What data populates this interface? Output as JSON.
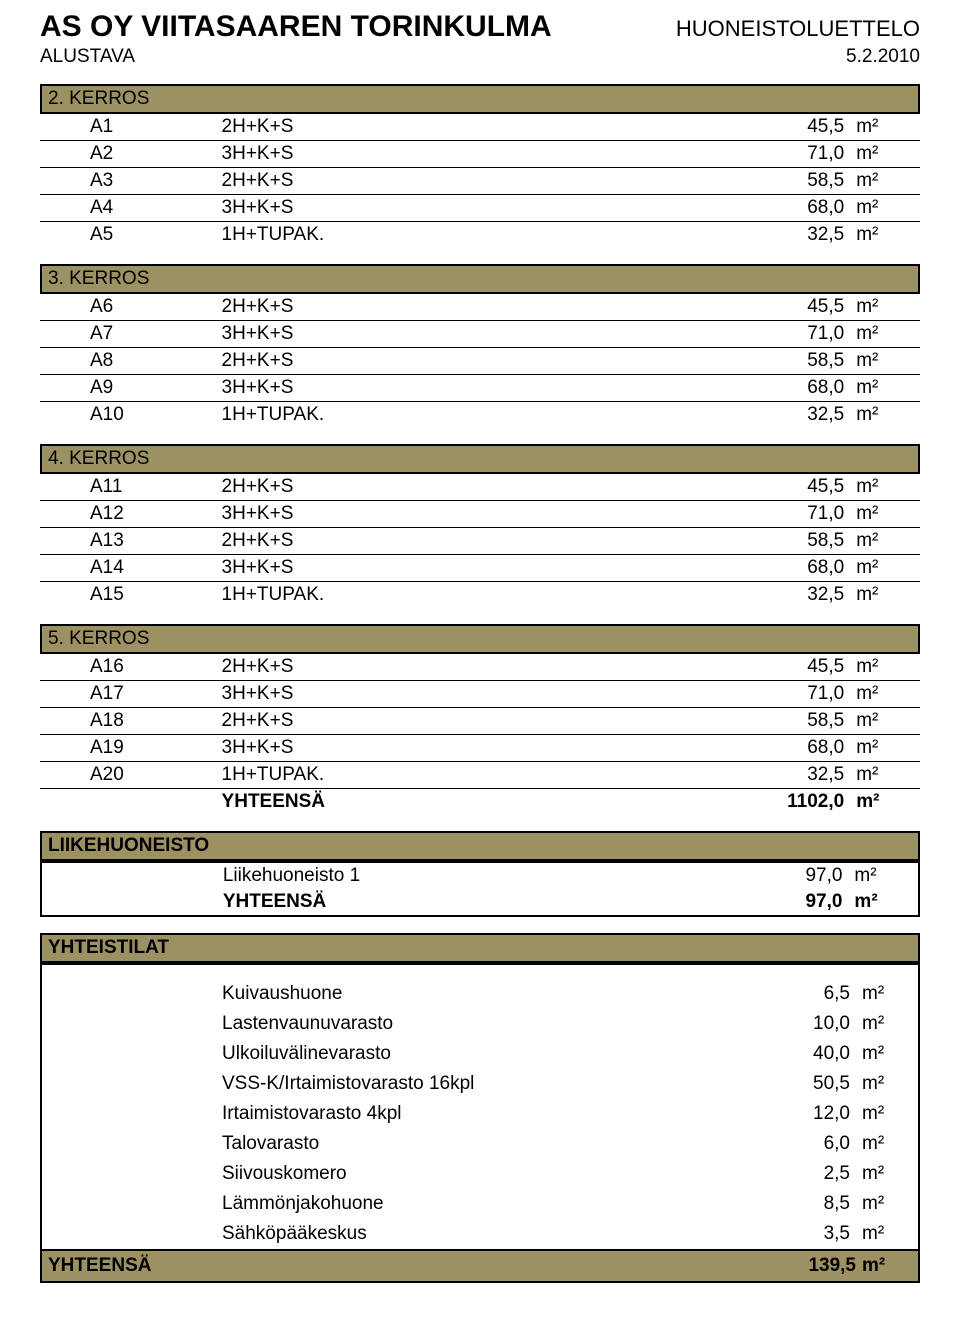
{
  "header": {
    "company": "AS OY VIITASAAREN TORINKULMA",
    "right_title": "HUONEISTOLUETTELO",
    "subtitle": "ALUSTAVA",
    "date": "5.2.2010"
  },
  "floors": [
    {
      "title": "2. KERROS",
      "rows": [
        {
          "id": "A1",
          "type": "2H+K+S",
          "val": "45,5",
          "unit": "m²"
        },
        {
          "id": "A2",
          "type": "3H+K+S",
          "val": "71,0",
          "unit": "m²"
        },
        {
          "id": "A3",
          "type": "2H+K+S",
          "val": "58,5",
          "unit": "m²"
        },
        {
          "id": "A4",
          "type": "3H+K+S",
          "val": "68,0",
          "unit": "m²"
        },
        {
          "id": "A5",
          "type": "1H+TUPAK.",
          "val": "32,5",
          "unit": "m²"
        }
      ]
    },
    {
      "title": "3. KERROS",
      "rows": [
        {
          "id": "A6",
          "type": "2H+K+S",
          "val": "45,5",
          "unit": "m²"
        },
        {
          "id": "A7",
          "type": "3H+K+S",
          "val": "71,0",
          "unit": "m²"
        },
        {
          "id": "A8",
          "type": "2H+K+S",
          "val": "58,5",
          "unit": "m²"
        },
        {
          "id": "A9",
          "type": "3H+K+S",
          "val": "68,0",
          "unit": "m²"
        },
        {
          "id": "A10",
          "type": "1H+TUPAK.",
          "val": "32,5",
          "unit": "m²"
        }
      ]
    },
    {
      "title": "4. KERROS",
      "rows": [
        {
          "id": "A11",
          "type": "2H+K+S",
          "val": "45,5",
          "unit": "m²"
        },
        {
          "id": "A12",
          "type": "3H+K+S",
          "val": "71,0",
          "unit": "m²"
        },
        {
          "id": "A13",
          "type": "2H+K+S",
          "val": "58,5",
          "unit": "m²"
        },
        {
          "id": "A14",
          "type": "3H+K+S",
          "val": "68,0",
          "unit": "m²"
        },
        {
          "id": "A15",
          "type": "1H+TUPAK.",
          "val": "32,5",
          "unit": "m²"
        }
      ]
    },
    {
      "title": "5. KERROS",
      "rows": [
        {
          "id": "A16",
          "type": "2H+K+S",
          "val": "45,5",
          "unit": "m²"
        },
        {
          "id": "A17",
          "type": "3H+K+S",
          "val": "71,0",
          "unit": "m²"
        },
        {
          "id": "A18",
          "type": "2H+K+S",
          "val": "58,5",
          "unit": "m²"
        },
        {
          "id": "A19",
          "type": "3H+K+S",
          "val": "68,0",
          "unit": "m²"
        },
        {
          "id": "A20",
          "type": "1H+TUPAK.",
          "val": "32,5",
          "unit": "m²"
        }
      ],
      "total": {
        "label": "YHTEENSÄ",
        "val": "1102,0",
        "unit": "m²"
      }
    }
  ],
  "liike": {
    "header": "LIIKEHUONEISTO",
    "rows": [
      {
        "label": "Liikehuoneisto 1",
        "val": "97,0",
        "unit": "m²"
      }
    ],
    "total": {
      "label": "YHTEENSÄ",
      "val": "97,0",
      "unit": "m²"
    }
  },
  "yhteistilat": {
    "header": "YHTEISTILAT",
    "rows": [
      {
        "label": "Kuivaushuone",
        "val": "6,5",
        "unit": "m²"
      },
      {
        "label": "Lastenvaunuvarasto",
        "val": "10,0",
        "unit": "m²"
      },
      {
        "label": "Ulkoiluvälinevarasto",
        "val": "40,0",
        "unit": "m²"
      },
      {
        "label": "VSS-K/Irtaimistovarasto 16kpl",
        "val": "50,5",
        "unit": "m²"
      },
      {
        "label": "Irtaimistovarasto 4kpl",
        "val": "12,0",
        "unit": "m²"
      },
      {
        "label": "Talovarasto",
        "val": "6,0",
        "unit": "m²"
      },
      {
        "label": "Siivouskomero",
        "val": "2,5",
        "unit": "m²"
      },
      {
        "label": "Lämmönjakohuone",
        "val": "8,5",
        "unit": "m²"
      },
      {
        "label": "Sähköpääkeskus",
        "val": "3,5",
        "unit": "m²"
      }
    ],
    "total": {
      "label": "YHTEENSÄ",
      "val": "139,5",
      "unit": "m²"
    }
  },
  "colors": {
    "header_bg": "#9b9163",
    "border": "#000000",
    "text": "#000000",
    "page_bg": "#ffffff"
  }
}
